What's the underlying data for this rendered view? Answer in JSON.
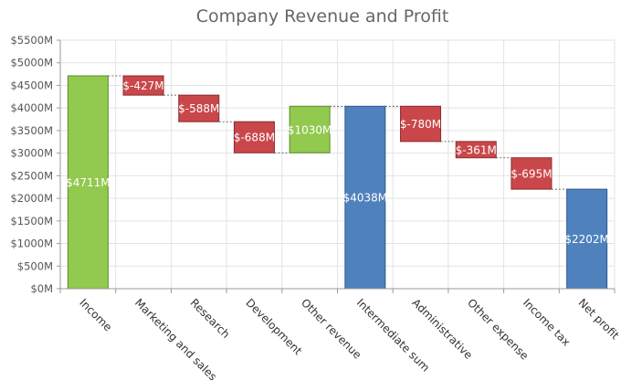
{
  "chart_data": {
    "type": "waterfall",
    "title": "Company Revenue and Profit",
    "xlabel": "",
    "ylabel": "",
    "ylim": [
      0,
      5500
    ],
    "y_tick_values": [
      0,
      500,
      1000,
      1500,
      2000,
      2500,
      3000,
      3500,
      4000,
      4500,
      5000,
      5500
    ],
    "y_tick_labels": [
      "$0M",
      "$500M",
      "$1000M",
      "$1500M",
      "$2000M",
      "$2500M",
      "$3000M",
      "$3500M",
      "$4000M",
      "$4500M",
      "$5000M",
      "$5500M"
    ],
    "grid": true,
    "legend": "none",
    "categories": [
      "Income",
      "Marketing and sales",
      "Research",
      "Development",
      "Other revenue",
      "Intermediate sum",
      "Administrative",
      "Other expense",
      "Income tax",
      "Net profit"
    ],
    "values": [
      4711,
      -427,
      -588,
      -688,
      1030,
      4038,
      -780,
      -361,
      -695,
      2202
    ],
    "kinds": [
      "increase",
      "decrease",
      "decrease",
      "decrease",
      "increase",
      "total",
      "decrease",
      "decrease",
      "decrease",
      "total"
    ],
    "data_labels": [
      "$4711M",
      "$-427M",
      "$-588M",
      "$-688M",
      "$1030M",
      "$4038M",
      "$-780M",
      "$-361M",
      "$-695M",
      "$2202M"
    ],
    "colors": {
      "increase": "#92c94f",
      "increase_border": "#5f8a2a",
      "decrease": "#c9474a",
      "decrease_border": "#8e2b2d",
      "total": "#4f81bd",
      "total_border": "#2e5a8f"
    }
  }
}
